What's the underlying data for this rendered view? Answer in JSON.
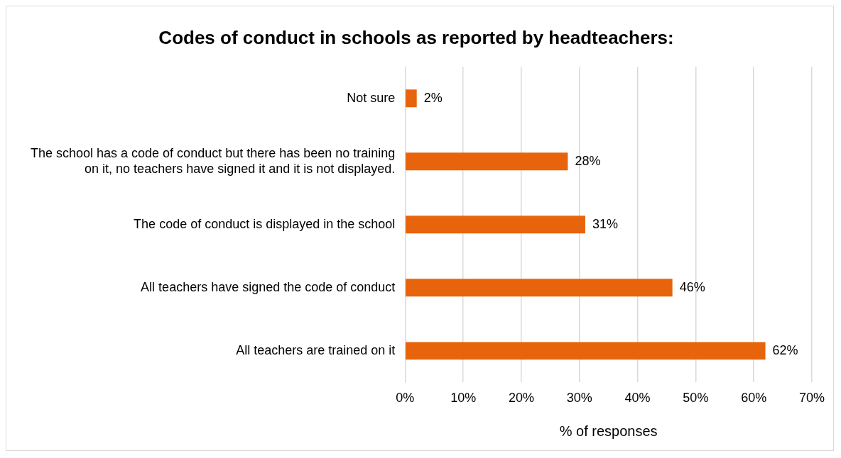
{
  "chart_data": {
    "type": "bar",
    "orientation": "horizontal",
    "title": "Codes of conduct in schools as reported by headteachers:",
    "xlabel": "% of responses",
    "categories": [
      "Not sure",
      "The school has a code of conduct but there has been no training on it, no teachers have signed it and it is not displayed.",
      "The code of conduct is displayed in the school",
      "All teachers have signed the code of conduct",
      "All teachers are trained on it"
    ],
    "values": [
      2,
      28,
      31,
      46,
      62
    ],
    "value_labels": [
      "2%",
      "28%",
      "31%",
      "46%",
      "62%"
    ],
    "color": "#e8640c",
    "xlim": [
      0,
      70
    ],
    "xticks": [
      {
        "value": 0,
        "label": "0%"
      },
      {
        "value": 10,
        "label": "10%"
      },
      {
        "value": 20,
        "label": "20%"
      },
      {
        "value": 30,
        "label": "30%"
      },
      {
        "value": 40,
        "label": "40%"
      },
      {
        "value": 50,
        "label": "50%"
      },
      {
        "value": 60,
        "label": "60%"
      },
      {
        "value": 70,
        "label": "70%"
      }
    ],
    "grid": "x",
    "legend": false
  }
}
